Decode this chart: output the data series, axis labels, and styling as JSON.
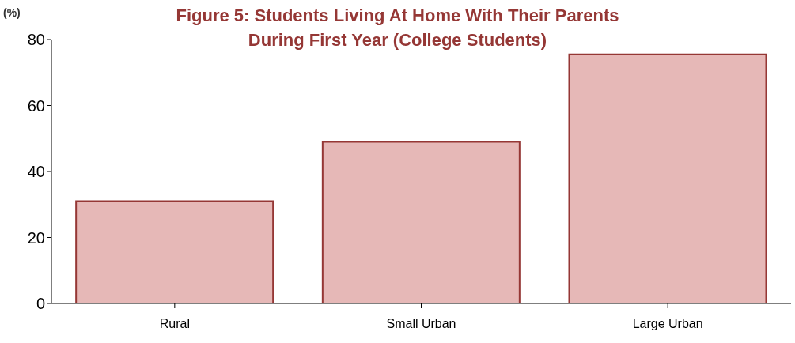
{
  "chart_data": {
    "type": "bar",
    "title": "Figure 5: Students Living At Home With Their Parents\nDuring First Year (College Students)",
    "ylabel": "(%)",
    "categories": [
      "Rural",
      "Small Urban",
      "Large Urban"
    ],
    "values": [
      31,
      49,
      75.5
    ],
    "color": "#e6b8b7",
    "ylim": [
      0,
      80
    ],
    "yticks": [
      0,
      20,
      40,
      60,
      80
    ],
    "grid": false,
    "legend": false
  }
}
